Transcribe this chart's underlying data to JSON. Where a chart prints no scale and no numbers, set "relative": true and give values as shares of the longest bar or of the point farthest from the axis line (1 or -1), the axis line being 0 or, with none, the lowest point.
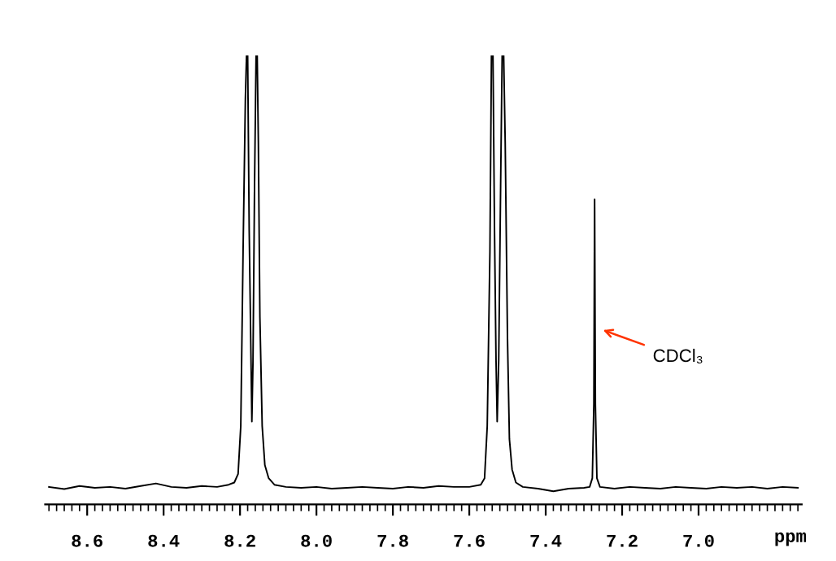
{
  "chart_data": {
    "type": "line",
    "relative": true,
    "xlabel": "ppm",
    "color": "#000000",
    "grid": false,
    "legend": false,
    "marker": "none",
    "line_style": "solid",
    "tick_labels": "x",
    "xlim": [
      8.71,
      6.73
    ],
    "xticks": [
      8.6,
      8.4,
      8.2,
      {
        "value": 8.0,
        "label": "8.0"
      },
      7.8,
      7.6,
      7.4,
      7.2,
      {
        "value": 7.0,
        "label": "7.0"
      },
      {
        "value": 8.7,
        "label": null
      },
      {
        "value": 8.68,
        "label": null
      },
      {
        "value": 8.66,
        "label": null
      },
      {
        "value": 8.64,
        "label": null
      },
      {
        "value": 8.62,
        "label": null
      },
      {
        "value": 8.58,
        "label": null
      },
      {
        "value": 8.56,
        "label": null
      },
      {
        "value": 8.54,
        "label": null
      },
      {
        "value": 8.52,
        "label": null
      },
      {
        "value": 8.5,
        "label": null
      },
      {
        "value": 8.48,
        "label": null
      },
      {
        "value": 8.46,
        "label": null
      },
      {
        "value": 8.44,
        "label": null
      },
      {
        "value": 8.42,
        "label": null
      },
      {
        "value": 8.38,
        "label": null
      },
      {
        "value": 8.36,
        "label": null
      },
      {
        "value": 8.34,
        "label": null
      },
      {
        "value": 8.32,
        "label": null
      },
      {
        "value": 8.3,
        "label": null
      },
      {
        "value": 8.28,
        "label": null
      },
      {
        "value": 8.26,
        "label": null
      },
      {
        "value": 8.24,
        "label": null
      },
      {
        "value": 8.22,
        "label": null
      },
      {
        "value": 8.18,
        "label": null
      },
      {
        "value": 8.16,
        "label": null
      },
      {
        "value": 8.14,
        "label": null
      },
      {
        "value": 8.12,
        "label": null
      },
      {
        "value": 8.1,
        "label": null
      },
      {
        "value": 8.08,
        "label": null
      },
      {
        "value": 8.06,
        "label": null
      },
      {
        "value": 8.04,
        "label": null
      },
      {
        "value": 8.02,
        "label": null
      },
      {
        "value": 7.98,
        "label": null
      },
      {
        "value": 7.96,
        "label": null
      },
      {
        "value": 7.94,
        "label": null
      },
      {
        "value": 7.92,
        "label": null
      },
      {
        "value": 7.9,
        "label": null
      },
      {
        "value": 7.88,
        "label": null
      },
      {
        "value": 7.86,
        "label": null
      },
      {
        "value": 7.84,
        "label": null
      },
      {
        "value": 7.82,
        "label": null
      },
      {
        "value": 7.78,
        "label": null
      },
      {
        "value": 7.76,
        "label": null
      },
      {
        "value": 7.74,
        "label": null
      },
      {
        "value": 7.72,
        "label": null
      },
      {
        "value": 7.7,
        "label": null
      },
      {
        "value": 7.68,
        "label": null
      },
      {
        "value": 7.66,
        "label": null
      },
      {
        "value": 7.64,
        "label": null
      },
      {
        "value": 7.62,
        "label": null
      },
      {
        "value": 7.58,
        "label": null
      },
      {
        "value": 7.56,
        "label": null
      },
      {
        "value": 7.54,
        "label": null
      },
      {
        "value": 7.52,
        "label": null
      },
      {
        "value": 7.5,
        "label": null
      },
      {
        "value": 7.48,
        "label": null
      },
      {
        "value": 7.46,
        "label": null
      },
      {
        "value": 7.44,
        "label": null
      },
      {
        "value": 7.42,
        "label": null
      },
      {
        "value": 7.38,
        "label": null
      },
      {
        "value": 7.36,
        "label": null
      },
      {
        "value": 7.34,
        "label": null
      },
      {
        "value": 7.32,
        "label": null
      },
      {
        "value": 7.3,
        "label": null
      },
      {
        "value": 7.28,
        "label": null
      },
      {
        "value": 7.26,
        "label": null
      },
      {
        "value": 7.24,
        "label": null
      },
      {
        "value": 7.22,
        "label": null
      },
      {
        "value": 7.18,
        "label": null
      },
      {
        "value": 7.16,
        "label": null
      },
      {
        "value": 7.14,
        "label": null
      },
      {
        "value": 7.12,
        "label": null
      },
      {
        "value": 7.1,
        "label": null
      },
      {
        "value": 7.08,
        "label": null
      },
      {
        "value": 7.06,
        "label": null
      },
      {
        "value": 7.04,
        "label": null
      },
      {
        "value": 7.02,
        "label": null
      },
      {
        "value": 6.98,
        "label": null
      },
      {
        "value": 6.96,
        "label": null
      },
      {
        "value": 6.94,
        "label": null
      },
      {
        "value": 6.92,
        "label": null
      },
      {
        "value": 6.9,
        "label": null
      },
      {
        "value": 6.88,
        "label": null
      },
      {
        "value": 6.86,
        "label": null
      },
      {
        "value": 6.84,
        "label": null
      },
      {
        "value": 6.82,
        "label": null
      },
      {
        "value": 6.8,
        "label": null
      },
      {
        "value": 6.78,
        "label": null
      },
      {
        "value": 6.76,
        "label": null
      },
      {
        "value": 6.74,
        "label": null
      }
    ],
    "x": [
      8.7,
      8.66,
      8.62,
      8.58,
      8.54,
      8.5,
      8.46,
      8.42,
      8.38,
      8.34,
      8.3,
      8.26,
      8.23,
      8.215,
      8.205,
      8.198,
      8.192,
      8.186,
      8.183,
      8.18,
      8.176,
      8.172,
      8.169,
      8.166,
      8.162,
      8.158,
      8.155,
      8.152,
      8.148,
      8.142,
      8.135,
      8.125,
      8.11,
      8.08,
      8.04,
      8.0,
      7.96,
      7.92,
      7.88,
      7.84,
      7.8,
      7.76,
      7.72,
      7.68,
      7.64,
      7.6,
      7.57,
      7.56,
      7.553,
      7.546,
      7.542,
      7.538,
      7.534,
      7.53,
      7.527,
      7.523,
      7.518,
      7.514,
      7.51,
      7.506,
      7.5,
      7.495,
      7.488,
      7.478,
      7.46,
      7.42,
      7.38,
      7.34,
      7.3,
      7.285,
      7.278,
      7.274,
      7.272,
      7.27,
      7.266,
      7.258,
      7.22,
      7.18,
      7.14,
      7.1,
      7.06,
      7.02,
      6.98,
      6.94,
      6.9,
      6.86,
      6.82,
      6.78,
      6.74
    ],
    "values": [
      0.01,
      0.005,
      0.012,
      0.008,
      0.01,
      0.006,
      0.012,
      0.018,
      0.01,
      0.008,
      0.012,
      0.01,
      0.015,
      0.02,
      0.04,
      0.15,
      0.55,
      0.9,
      1.0,
      1.0,
      0.6,
      0.35,
      0.16,
      0.3,
      0.7,
      1.0,
      1.0,
      0.8,
      0.4,
      0.15,
      0.06,
      0.03,
      0.015,
      0.01,
      0.008,
      0.01,
      0.006,
      0.008,
      0.01,
      0.008,
      0.006,
      0.01,
      0.008,
      0.012,
      0.01,
      0.01,
      0.015,
      0.03,
      0.15,
      0.55,
      1.0,
      1.0,
      0.6,
      0.3,
      0.16,
      0.3,
      0.7,
      1.0,
      1.0,
      0.8,
      0.35,
      0.12,
      0.05,
      0.02,
      0.01,
      0.006,
      0.0,
      0.006,
      0.008,
      0.01,
      0.03,
      0.2,
      0.67,
      0.2,
      0.03,
      0.01,
      0.006,
      0.01,
      0.008,
      0.006,
      0.01,
      0.008,
      0.006,
      0.01,
      0.008,
      0.01,
      0.006,
      0.01,
      0.008
    ],
    "annotations": [
      {
        "text": "CDCl₃",
        "x": 7.25,
        "y": 0.37
      }
    ]
  }
}
